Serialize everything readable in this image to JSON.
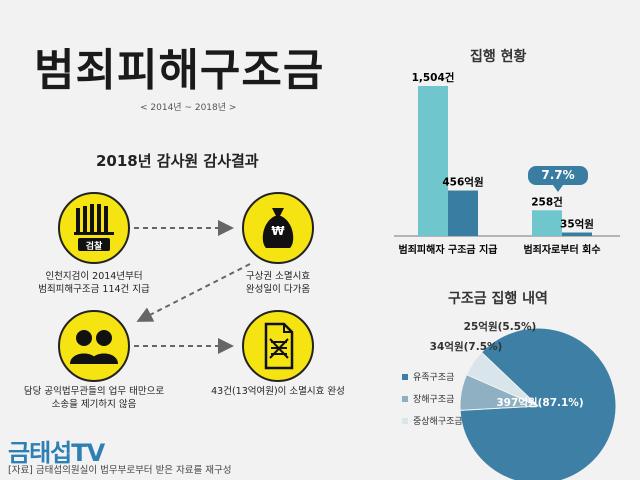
{
  "title": "범죄피해구조금",
  "period": "< 2014년 ~ 2018년 >",
  "audit": {
    "heading": "2018년 감사원 감사결과",
    "prosecution_badge": "검찰",
    "won_symbol": "₩",
    "step1": "인천지검이 2014년부터\n범죄피해구조금 114건 지급",
    "step2": "구상권 소멸시효\n완성일이 다가옴",
    "step3": "담당 공익법무관들의 업무 태만으로\n소송을 제기하지 않음",
    "step4": "43건(13억여원)이 소멸시효 완성"
  },
  "execution": {
    "heading": "집행 현황",
    "rate_badge": "7.7%",
    "chart_data": {
      "type": "bar",
      "categories": [
        "범죄피해자 구조금 지급",
        "범죄자로부터 회수"
      ],
      "series": [
        {
          "values": [
            1504,
            258
          ],
          "labels": [
            "1,504건",
            "258건"
          ],
          "color": "#6fc6cc"
        },
        {
          "values": [
            456,
            35
          ],
          "labels": [
            "456억원",
            "35억원"
          ],
          "color": "#3a7da3"
        }
      ]
    }
  },
  "breakdown": {
    "heading": "구조금 집행 내역",
    "chart_data": {
      "type": "pie",
      "slices": [
        {
          "name": "유족구조금",
          "value": 87.1,
          "label": "397억원(87.1%)",
          "color": "#3e7fa6"
        },
        {
          "name": "장해구조금",
          "value": 7.5,
          "label": "34억원(7.5%)",
          "color": "#8eb0c2"
        },
        {
          "name": "중상해구조금",
          "value": 5.5,
          "label": "25억원(5.5%)",
          "color": "#d9e5ea"
        }
      ]
    }
  },
  "logo": "금태섭TV",
  "source": "[자료] 금태섭의원실이 법무부로부터 받은 자료를 재구성"
}
